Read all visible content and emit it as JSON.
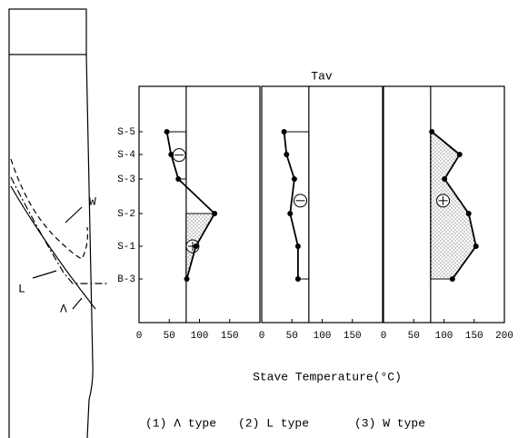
{
  "chart_data": {
    "type": "line",
    "x_label": "Stave Temperature(°C)",
    "reference_label": "Tav",
    "categories": [
      "S-5",
      "S-4",
      "S-3",
      "S-2",
      "S-1",
      "B-3"
    ],
    "series": [
      {
        "name": "(1) Λ type",
        "color": "#000000",
        "values": [
          46,
          53,
          65,
          125,
          94,
          79
        ],
        "xlim": [
          0,
          200
        ],
        "xticks": [
          0,
          50,
          100,
          150
        ],
        "reference_value": 78
      },
      {
        "name": "(2) L type",
        "color": "#000000",
        "values": [
          37,
          41,
          54,
          47,
          60,
          60
        ],
        "xlim": [
          0,
          200
        ],
        "xticks": [
          0,
          50,
          100,
          150
        ],
        "reference_value": 78
      },
      {
        "name": "(3) W type",
        "color": "#000000",
        "values": [
          80,
          126,
          101,
          141,
          153,
          114
        ],
        "xlim": [
          0,
          200
        ],
        "xticks": [
          0,
          50,
          100,
          150,
          200
        ],
        "reference_value": 78
      }
    ],
    "diagram_labels": [
      "W",
      "L",
      "Λ"
    ]
  }
}
